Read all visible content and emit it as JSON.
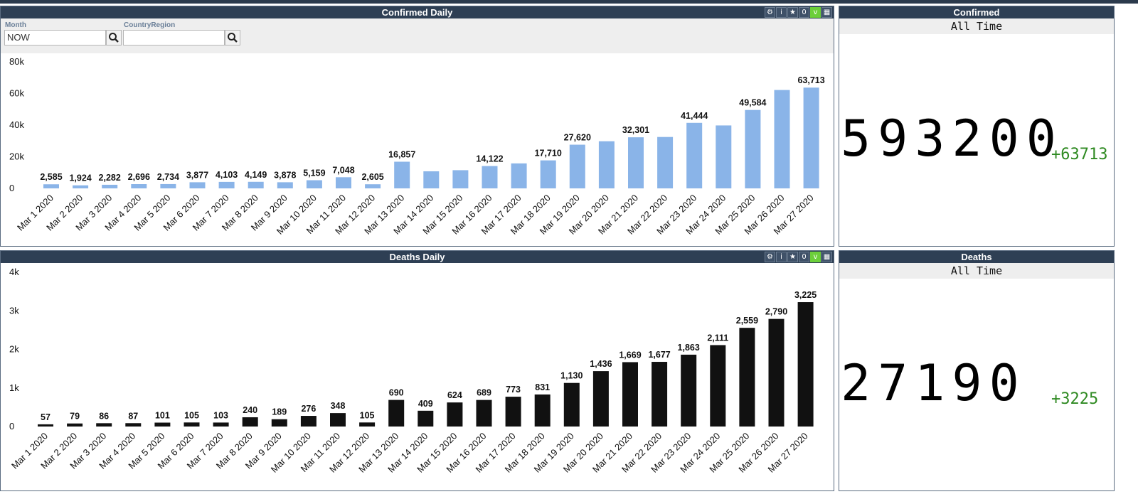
{
  "panels": {
    "confirmed_daily": {
      "title": "Confirmed Daily",
      "filters": {
        "month_label": "Month",
        "month_value": "NOW",
        "country_label": "CountryRegion",
        "country_value": ""
      },
      "toolbar": [
        "gear-icon",
        "info-icon",
        "star-icon",
        "0",
        "v",
        "table-icon"
      ]
    },
    "deaths_daily": {
      "title": "Deaths Daily",
      "toolbar": [
        "gear-icon",
        "info-icon",
        "star-icon",
        "0",
        "v",
        "table-icon"
      ]
    },
    "confirmed_total": {
      "title": "Confirmed",
      "subtitle": "All Time",
      "value": "593200",
      "delta": "+63713"
    },
    "deaths_total": {
      "title": "Deaths",
      "subtitle": "All Time",
      "value": "27190",
      "delta": "+3225"
    }
  },
  "colors": {
    "header": "#2e3f54",
    "confirmed_bar": "#8ab4e8",
    "deaths_bar": "#111111",
    "delta_green": "#2f8a22",
    "toolbar_green": "#6ccf3a"
  },
  "chart_data": [
    {
      "type": "bar",
      "title": "Confirmed Daily",
      "categories": [
        "Mar 1 2020",
        "Mar 2 2020",
        "Mar 3 2020",
        "Mar 4 2020",
        "Mar 5 2020",
        "Mar 6 2020",
        "Mar 7 2020",
        "Mar 8 2020",
        "Mar 9 2020",
        "Mar 10 2020",
        "Mar 11 2020",
        "Mar 12 2020",
        "Mar 13 2020",
        "Mar 14 2020",
        "Mar 15 2020",
        "Mar 16 2020",
        "Mar 17 2020",
        "Mar 18 2020",
        "Mar 19 2020",
        "Mar 20 2020",
        "Mar 21 2020",
        "Mar 22 2020",
        "Mar 23 2020",
        "Mar 24 2020",
        "Mar 25 2020",
        "Mar 26 2020",
        "Mar 27 2020"
      ],
      "values": [
        2585,
        1924,
        2282,
        2696,
        2734,
        3877,
        4103,
        4149,
        3878,
        5159,
        7048,
        2605,
        16857,
        10800,
        11500,
        14122,
        15800,
        17710,
        27620,
        29800,
        32301,
        32500,
        41444,
        39800,
        49584,
        62200,
        63713
      ],
      "labels": [
        "2,585",
        "1,924",
        "2,282",
        "2,696",
        "2,734",
        "3,877",
        "4,103",
        "4,149",
        "3,878",
        "5,159",
        "7,048",
        "2,605",
        "16,857",
        "",
        "",
        "14,122",
        "",
        "17,710",
        "27,620",
        "",
        "32,301",
        "",
        "41,444",
        "",
        "49,584",
        "",
        "63,713"
      ],
      "yticks": [
        0,
        20000,
        40000,
        60000,
        80000
      ],
      "ytick_labels": [
        "0",
        "20k",
        "40k",
        "60k",
        "80k"
      ],
      "ylim": [
        0,
        80000
      ],
      "color": "#8ab4e8"
    },
    {
      "type": "bar",
      "title": "Deaths Daily",
      "categories": [
        "Mar 1 2020",
        "Mar 2 2020",
        "Mar 3 2020",
        "Mar 4 2020",
        "Mar 5 2020",
        "Mar 6 2020",
        "Mar 7 2020",
        "Mar 8 2020",
        "Mar 9 2020",
        "Mar 10 2020",
        "Mar 11 2020",
        "Mar 12 2020",
        "Mar 13 2020",
        "Mar 14 2020",
        "Mar 15 2020",
        "Mar 16 2020",
        "Mar 17 2020",
        "Mar 18 2020",
        "Mar 19 2020",
        "Mar 20 2020",
        "Mar 21 2020",
        "Mar 22 2020",
        "Mar 23 2020",
        "Mar 24 2020",
        "Mar 25 2020",
        "Mar 26 2020",
        "Mar 27 2020"
      ],
      "values": [
        57,
        79,
        86,
        87,
        101,
        105,
        103,
        240,
        189,
        276,
        348,
        105,
        690,
        409,
        624,
        689,
        773,
        831,
        1130,
        1436,
        1669,
        1677,
        1863,
        2111,
        2559,
        2790,
        3225
      ],
      "labels": [
        "57",
        "79",
        "86",
        "87",
        "101",
        "105",
        "103",
        "240",
        "189",
        "276",
        "348",
        "105",
        "690",
        "409",
        "624",
        "689",
        "773",
        "831",
        "1,130",
        "1,436",
        "1,669",
        "1,677",
        "1,863",
        "2,111",
        "2,559",
        "2,790",
        "3,225"
      ],
      "yticks": [
        0,
        1000,
        2000,
        3000,
        4000
      ],
      "ytick_labels": [
        "0",
        "1k",
        "2k",
        "3k",
        "4k"
      ],
      "ylim": [
        0,
        4000
      ],
      "color": "#111111"
    }
  ]
}
